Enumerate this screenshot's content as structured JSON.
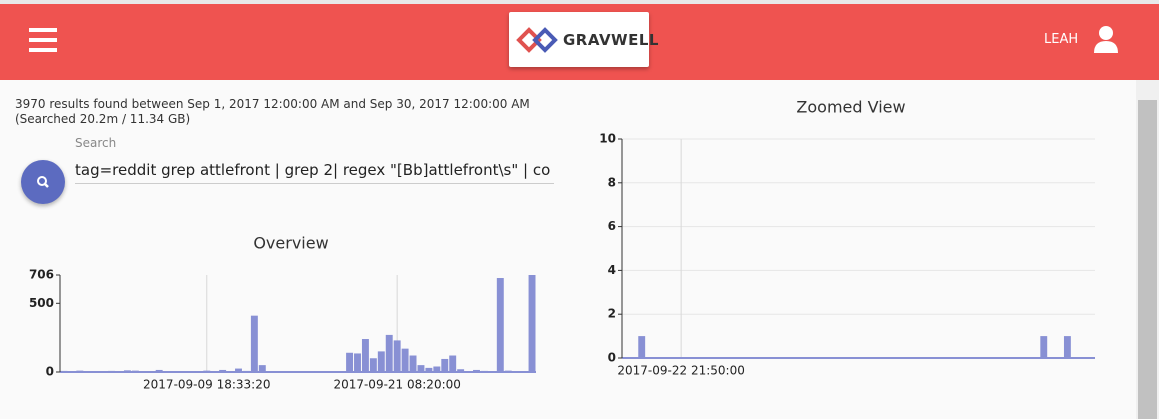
{
  "header": {
    "logo": "GRAVWELL",
    "user": "LEAH"
  },
  "results": {
    "summary": "3970 results found between Sep 1, 2017 12:00:00 AM and Sep 30, 2017 12:00:00 AM",
    "searched": "(Searched 20.2m / 11.34 GB)"
  },
  "search": {
    "label": "Search",
    "query": "tag=reddit grep attlefront | grep 2|  regex \"[Bb]attlefront\\s\" | co"
  },
  "chart_data": [
    {
      "type": "bar",
      "title": "Overview",
      "color": "#8890d4",
      "ylim": [
        0,
        706
      ],
      "yticks": [
        0,
        500,
        706
      ],
      "grid": false,
      "categories": [
        null,
        null,
        null,
        null,
        null,
        null,
        null,
        null,
        null,
        null,
        null,
        null,
        null,
        null,
        null,
        null,
        null,
        null,
        "2017-09-09 18:33:20",
        null,
        null,
        null,
        null,
        null,
        null,
        null,
        null,
        null,
        null,
        null,
        null,
        null,
        null,
        null,
        null,
        null,
        null,
        null,
        null,
        null,
        null,
        null,
        "2017-09-21 08:20:00",
        null,
        null,
        null,
        null,
        null,
        null,
        null,
        null,
        null,
        null,
        null,
        null,
        null,
        null,
        null,
        null,
        null
      ],
      "values": [
        8,
        5,
        10,
        6,
        4,
        6,
        8,
        5,
        12,
        10,
        6,
        4,
        15,
        5,
        4,
        3,
        6,
        4,
        10,
        4,
        15,
        6,
        25,
        8,
        410,
        50,
        4,
        3,
        2,
        5,
        3,
        2,
        4,
        3,
        2,
        2,
        140,
        135,
        240,
        100,
        150,
        270,
        230,
        170,
        120,
        50,
        30,
        40,
        95,
        120,
        20,
        5,
        15,
        8,
        5,
        684,
        10,
        5,
        6,
        706
      ]
    },
    {
      "type": "bar",
      "title": "Zoomed View",
      "color": "#8890d4",
      "ylim": [
        0,
        10
      ],
      "yticks": [
        0,
        2,
        4,
        6,
        8,
        10
      ],
      "grid": true,
      "categories": [
        null,
        null,
        null,
        null,
        null,
        null,
        null,
        "2017-09-22 21:50:00",
        null,
        null,
        null,
        null,
        null,
        null,
        null,
        null,
        null,
        null,
        null,
        null,
        null,
        null,
        null,
        null,
        null,
        null,
        null,
        null,
        null,
        null,
        null,
        null,
        null,
        null,
        null,
        null,
        null,
        null,
        null,
        null,
        null,
        null,
        null,
        null,
        null,
        null,
        null,
        null,
        null,
        null,
        null,
        null,
        null,
        null,
        null,
        null,
        null,
        null,
        null,
        null
      ],
      "values": [
        0,
        0,
        1,
        0,
        0,
        0,
        0,
        0,
        0,
        0,
        0,
        0,
        0,
        0,
        0,
        0,
        0,
        0,
        0,
        0,
        0,
        0,
        0,
        0,
        0,
        0,
        0,
        0,
        0,
        0,
        0,
        0,
        0,
        0,
        0,
        0,
        0,
        0,
        0,
        0,
        0,
        0,
        0,
        0,
        0,
        0,
        0,
        0,
        0,
        0,
        0,
        0,
        0,
        1,
        0,
        0,
        1,
        0,
        0,
        0
      ]
    }
  ]
}
